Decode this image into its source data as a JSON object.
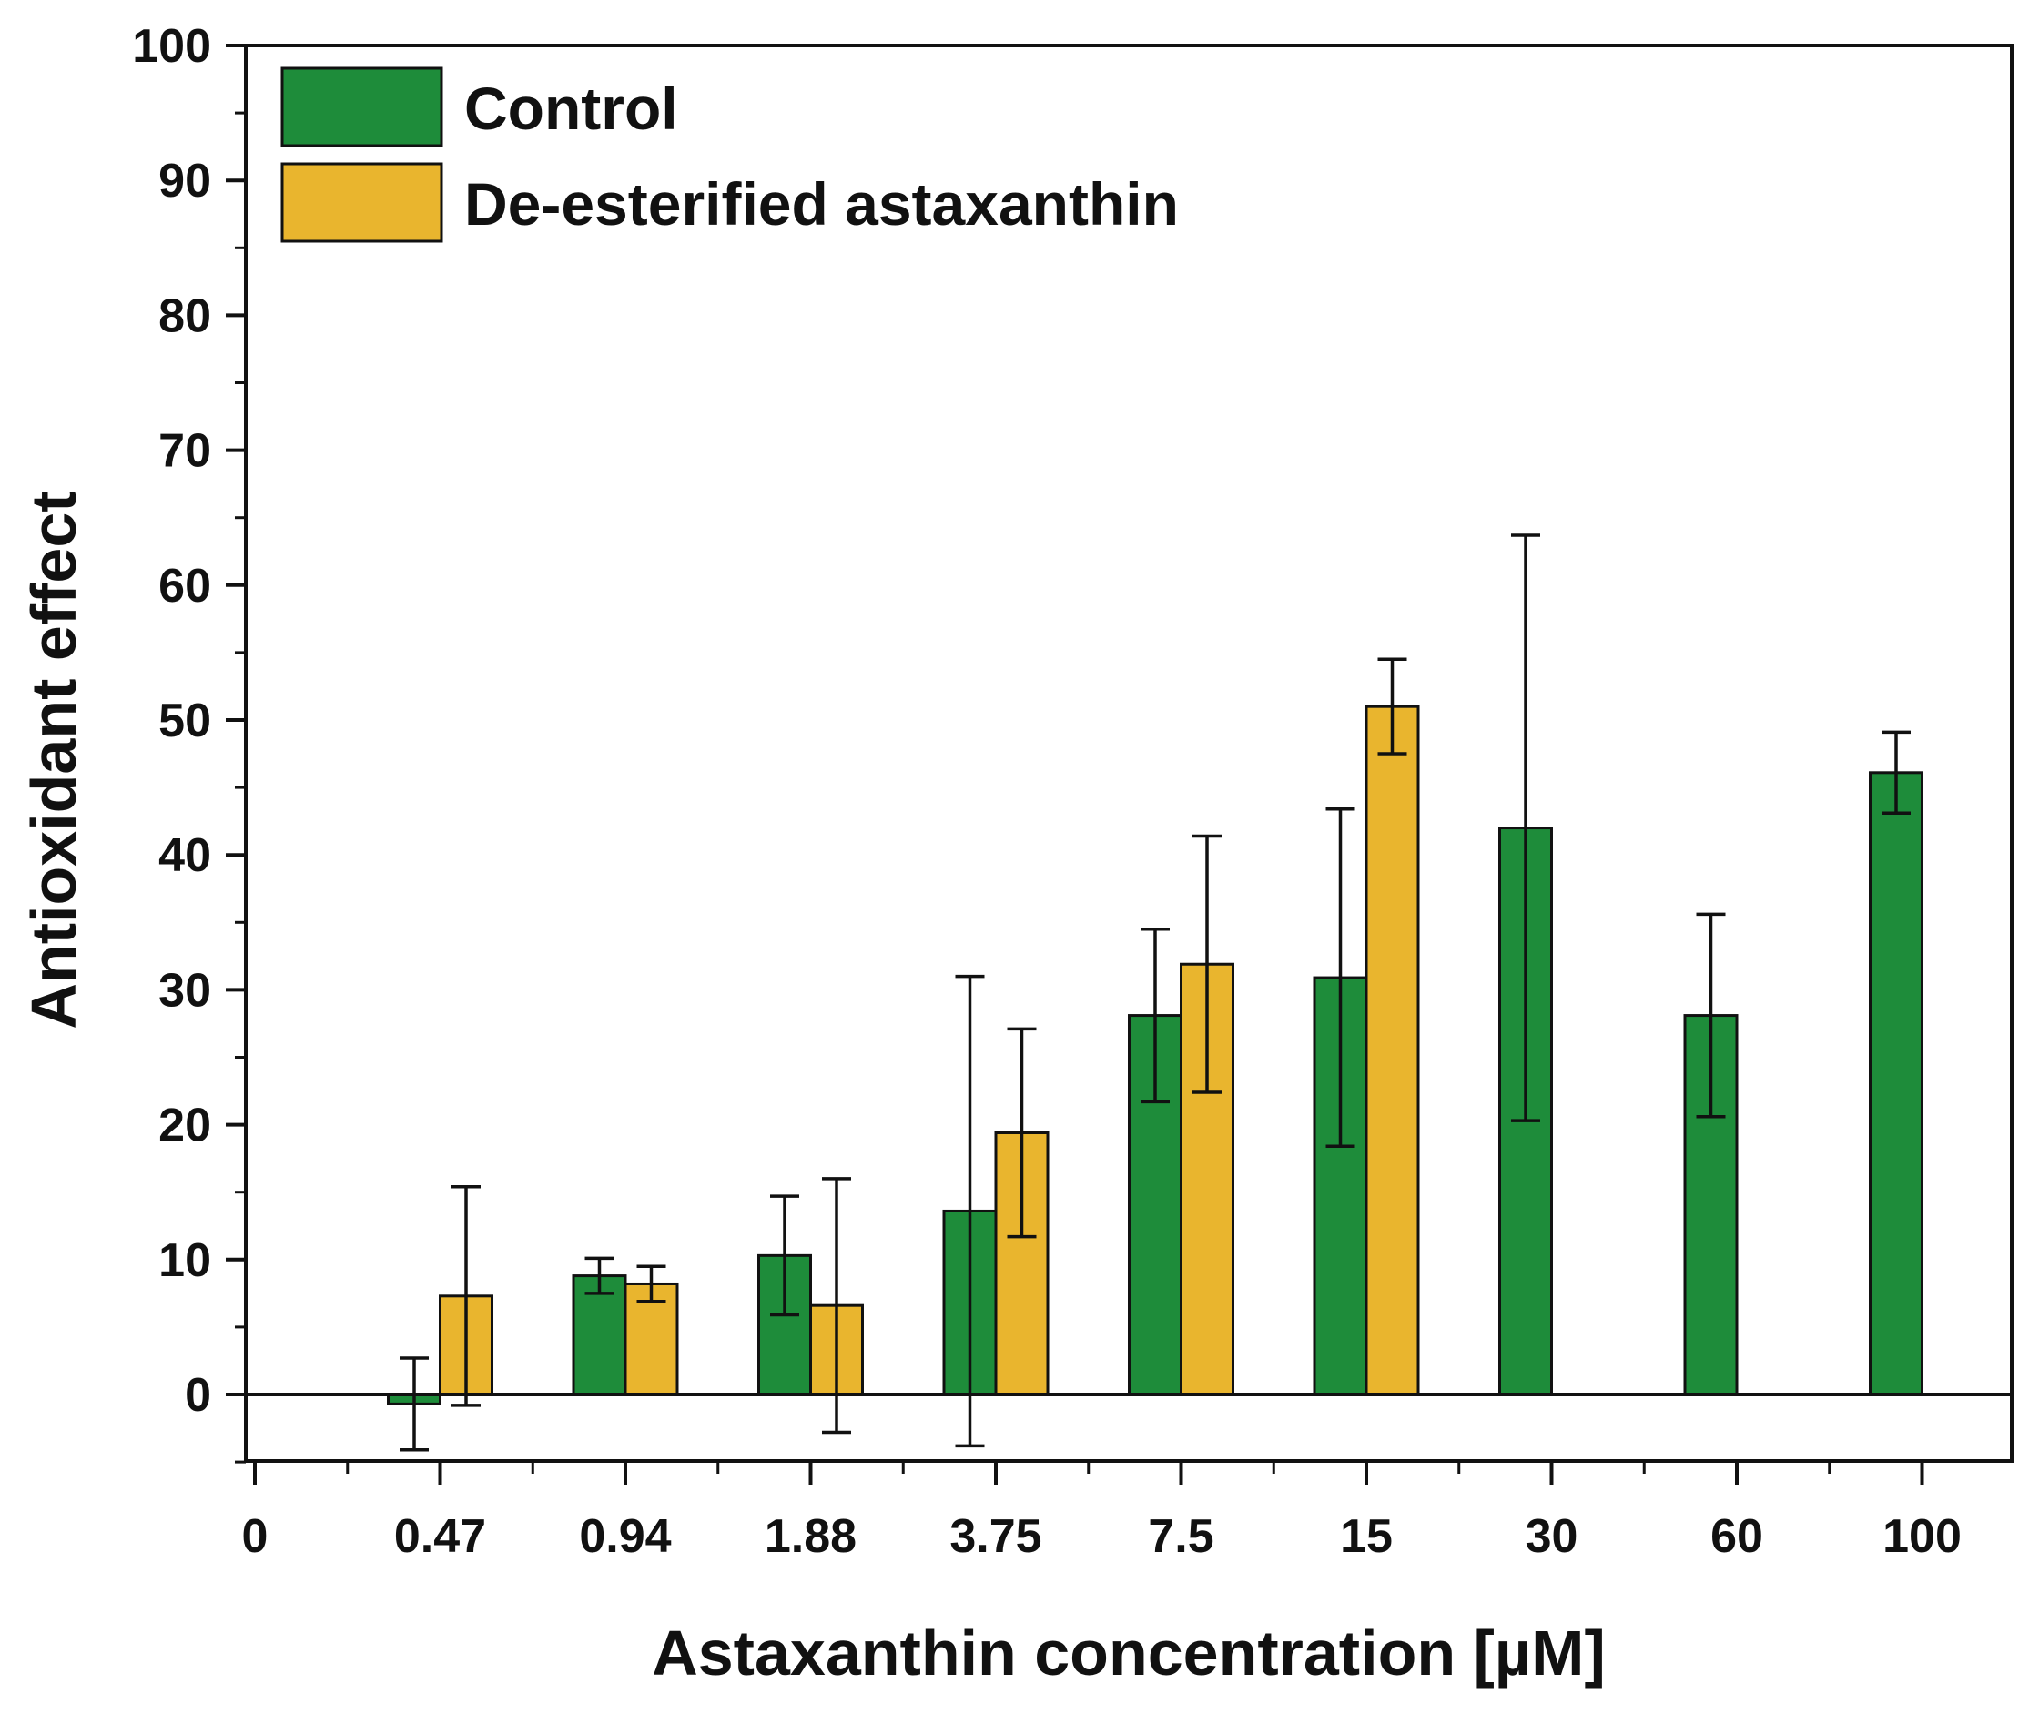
{
  "chart_data": {
    "type": "bar",
    "title": "",
    "xlabel": "Astaxanthin concentration [µM]",
    "ylabel": "Antioxidant effect",
    "x_tick_labels": [
      "0",
      "0.47",
      "0.94",
      "1.88",
      "3.75",
      "7.5",
      "15",
      "30",
      "60",
      "100"
    ],
    "categories": [
      "0.47",
      "0.94",
      "1.88",
      "3.75",
      "7.5",
      "15",
      "30",
      "60",
      "100"
    ],
    "ylim": [
      -5,
      100
    ],
    "y_ticks": [
      0,
      10,
      20,
      30,
      40,
      50,
      60,
      70,
      80,
      90,
      100
    ],
    "legend_position": "top-left",
    "grid": false,
    "series": [
      {
        "name": "Control",
        "color": "#1e8c3a",
        "values": [
          -0.7,
          8.8,
          10.3,
          13.6,
          28.1,
          30.9,
          42.0,
          28.1,
          46.1
        ],
        "errors": [
          3.4,
          1.3,
          4.4,
          17.4,
          6.4,
          12.5,
          21.7,
          7.5,
          3.0
        ]
      },
      {
        "name": "De-esterified astaxanthin",
        "color": "#e9b52e",
        "values": [
          7.3,
          8.2,
          6.6,
          19.4,
          31.9,
          51.0,
          null,
          null,
          null
        ],
        "errors": [
          8.1,
          1.3,
          9.4,
          7.7,
          9.5,
          3.5,
          null,
          null,
          null
        ]
      }
    ]
  }
}
